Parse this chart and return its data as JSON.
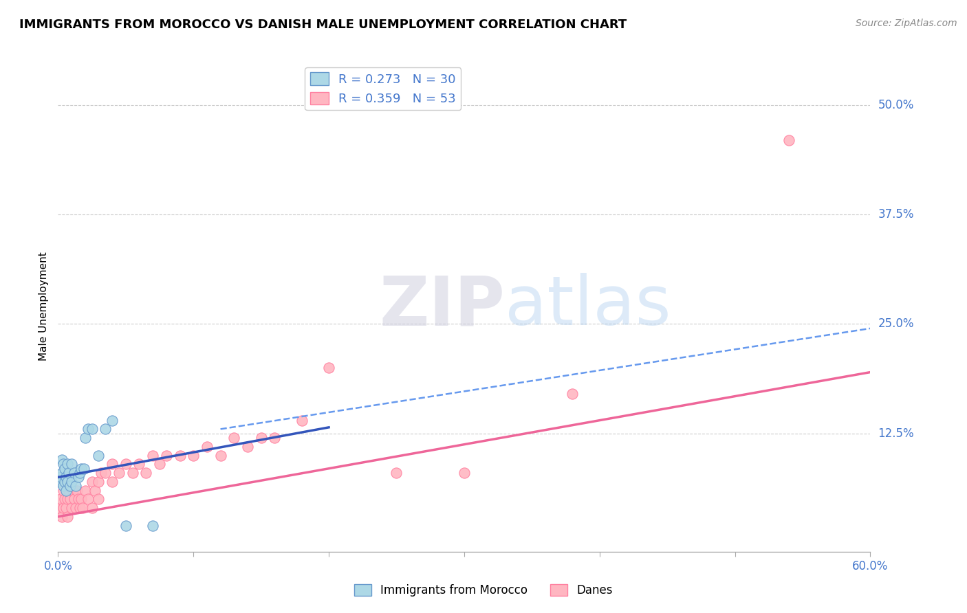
{
  "title": "IMMIGRANTS FROM MOROCCO VS DANISH MALE UNEMPLOYMENT CORRELATION CHART",
  "source": "Source: ZipAtlas.com",
  "ylabel": "Male Unemployment",
  "xlim": [
    0.0,
    0.6
  ],
  "ylim": [
    -0.01,
    0.55
  ],
  "yticks": [
    0.125,
    0.25,
    0.375,
    0.5
  ],
  "ytick_labels": [
    "12.5%",
    "25.0%",
    "37.5%",
    "50.0%"
  ],
  "xticks": [
    0.0,
    0.1,
    0.2,
    0.3,
    0.4,
    0.5,
    0.6
  ],
  "xtick_labels": [
    "0.0%",
    "",
    "",
    "",
    "",
    "",
    "60.0%"
  ],
  "blue_scatter_x": [
    0.001,
    0.002,
    0.003,
    0.003,
    0.004,
    0.004,
    0.005,
    0.005,
    0.006,
    0.006,
    0.007,
    0.007,
    0.008,
    0.009,
    0.01,
    0.01,
    0.012,
    0.013,
    0.015,
    0.016,
    0.017,
    0.019,
    0.02,
    0.022,
    0.025,
    0.03,
    0.035,
    0.04,
    0.05,
    0.07
  ],
  "blue_scatter_y": [
    0.07,
    0.075,
    0.08,
    0.095,
    0.065,
    0.09,
    0.07,
    0.085,
    0.06,
    0.075,
    0.07,
    0.09,
    0.08,
    0.065,
    0.07,
    0.09,
    0.08,
    0.065,
    0.075,
    0.08,
    0.085,
    0.085,
    0.12,
    0.13,
    0.13,
    0.1,
    0.13,
    0.14,
    0.02,
    0.02
  ],
  "pink_scatter_x": [
    0.001,
    0.002,
    0.003,
    0.004,
    0.004,
    0.005,
    0.006,
    0.007,
    0.007,
    0.008,
    0.009,
    0.01,
    0.011,
    0.012,
    0.013,
    0.014,
    0.015,
    0.016,
    0.017,
    0.018,
    0.02,
    0.022,
    0.025,
    0.025,
    0.027,
    0.03,
    0.03,
    0.032,
    0.035,
    0.04,
    0.04,
    0.045,
    0.05,
    0.055,
    0.06,
    0.065,
    0.07,
    0.075,
    0.08,
    0.09,
    0.1,
    0.11,
    0.12,
    0.13,
    0.14,
    0.15,
    0.16,
    0.18,
    0.2,
    0.25,
    0.3,
    0.38,
    0.54
  ],
  "pink_scatter_y": [
    0.04,
    0.05,
    0.03,
    0.06,
    0.04,
    0.05,
    0.04,
    0.05,
    0.03,
    0.06,
    0.05,
    0.04,
    0.06,
    0.05,
    0.04,
    0.06,
    0.05,
    0.04,
    0.05,
    0.04,
    0.06,
    0.05,
    0.07,
    0.04,
    0.06,
    0.07,
    0.05,
    0.08,
    0.08,
    0.07,
    0.09,
    0.08,
    0.09,
    0.08,
    0.09,
    0.08,
    0.1,
    0.09,
    0.1,
    0.1,
    0.1,
    0.11,
    0.1,
    0.12,
    0.11,
    0.12,
    0.12,
    0.14,
    0.2,
    0.08,
    0.08,
    0.17,
    0.46
  ],
  "blue_line_x": [
    0.0,
    0.2
  ],
  "blue_line_y_start": 0.075,
  "blue_line_y_end": 0.132,
  "dashed_line_x": [
    0.12,
    0.6
  ],
  "dashed_line_y_start": 0.13,
  "dashed_line_y_end": 0.245,
  "pink_line_x": [
    0.0,
    0.6
  ],
  "pink_line_y_start": 0.03,
  "pink_line_y_end": 0.195,
  "blue_color": "#ADD8E6",
  "pink_color": "#FFB6C1",
  "blue_scatter_edge": "#6699CC",
  "pink_scatter_edge": "#FF80A0",
  "blue_line_color": "#3355BB",
  "dashed_line_color": "#6699EE",
  "pink_line_color": "#EE6699",
  "legend_r1": "R = 0.273   N = 30",
  "legend_r2": "R = 0.359   N = 53",
  "watermark_zip": "ZIP",
  "watermark_atlas": "atlas",
  "legend_label1": "Immigrants from Morocco",
  "legend_label2": "Danes",
  "title_fontsize": 13,
  "tick_color": "#4477CC",
  "background_color": "#FFFFFF",
  "grid_color": "#CCCCCC"
}
